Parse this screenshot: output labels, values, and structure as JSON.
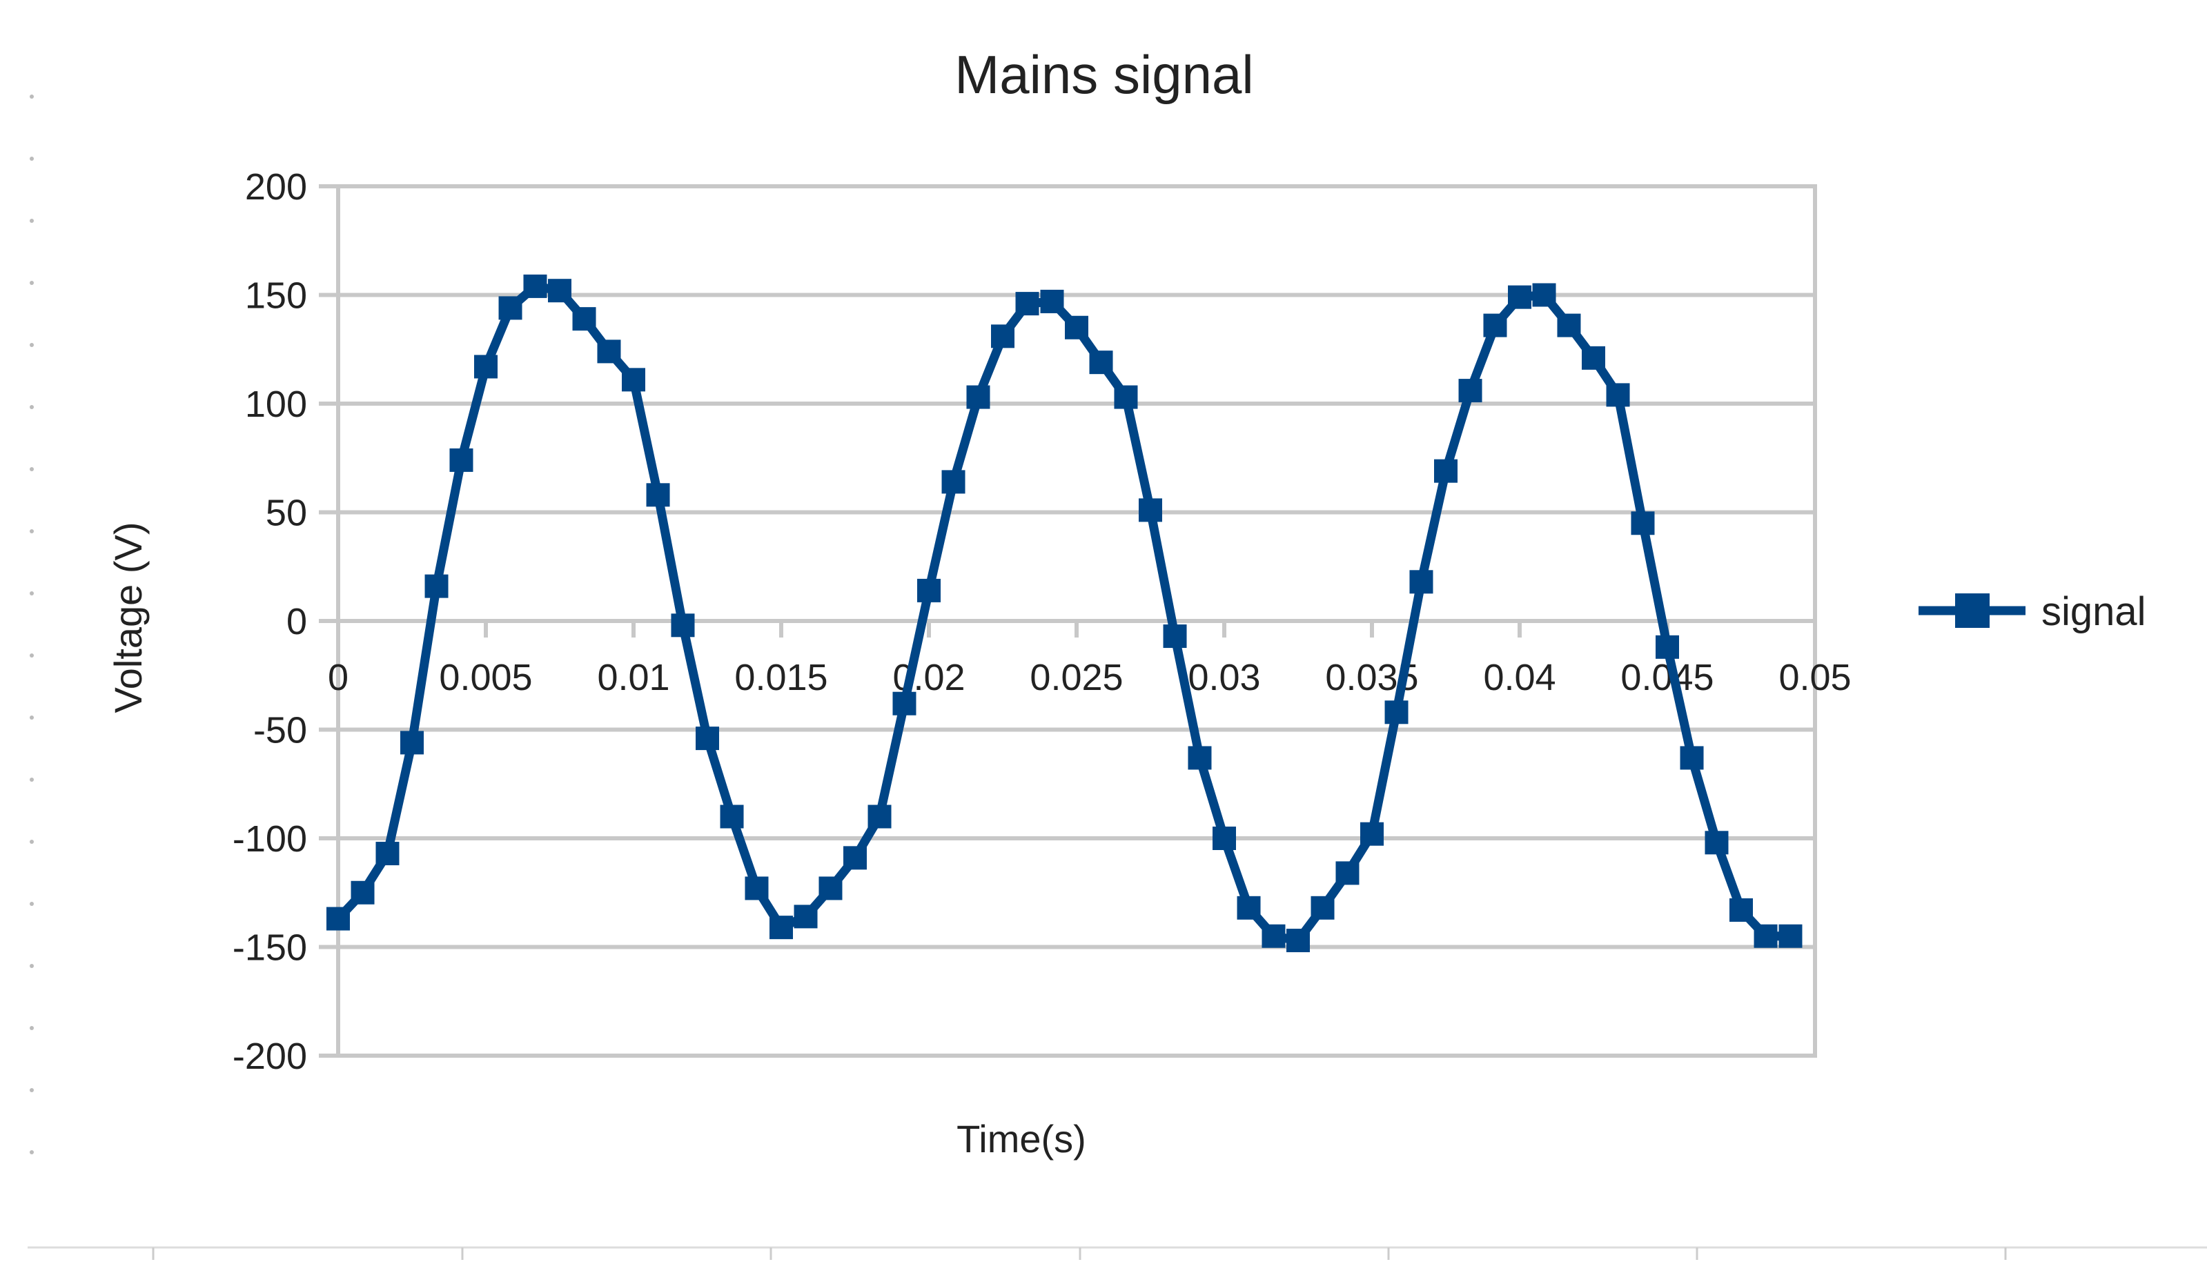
{
  "chart_data": {
    "type": "line",
    "title": "Mains signal",
    "xlabel": "Time(s)",
    "ylabel": "Voltage (V)",
    "xlim": [
      0,
      0.05
    ],
    "ylim": [
      -200,
      200
    ],
    "x_ticks": [
      "0",
      "0.005",
      "0.01",
      "0.015",
      "0.02",
      "0.025",
      "0.03",
      "0.035",
      "0.04",
      "0.045",
      "0.05"
    ],
    "y_ticks": [
      "200",
      "150",
      "100",
      "50",
      "0",
      "-50",
      "-100",
      "-150",
      "-200"
    ],
    "grid": true,
    "legend_position": "right",
    "series": [
      {
        "name": "signal",
        "color": "#004586",
        "marker": "square",
        "points": [
          [
            0.0,
            -137
          ],
          [
            0.00083,
            -125
          ],
          [
            0.00167,
            -107
          ],
          [
            0.0025,
            -56
          ],
          [
            0.00333,
            16
          ],
          [
            0.00417,
            74
          ],
          [
            0.005,
            117
          ],
          [
            0.00583,
            144
          ],
          [
            0.00667,
            154
          ],
          [
            0.0075,
            152
          ],
          [
            0.00833,
            139
          ],
          [
            0.00917,
            124
          ],
          [
            0.01,
            111
          ],
          [
            0.01083,
            58
          ],
          [
            0.01167,
            -2
          ],
          [
            0.0125,
            -54
          ],
          [
            0.01333,
            -90
          ],
          [
            0.01417,
            -123
          ],
          [
            0.015,
            -141
          ],
          [
            0.01583,
            -136
          ],
          [
            0.01667,
            -123
          ],
          [
            0.0175,
            -109
          ],
          [
            0.01833,
            -90
          ],
          [
            0.01917,
            -38
          ],
          [
            0.02,
            14
          ],
          [
            0.02083,
            64
          ],
          [
            0.02167,
            103
          ],
          [
            0.0225,
            131
          ],
          [
            0.02333,
            146
          ],
          [
            0.02417,
            147
          ],
          [
            0.025,
            135
          ],
          [
            0.02583,
            119
          ],
          [
            0.02667,
            103
          ],
          [
            0.0275,
            51
          ],
          [
            0.02833,
            -7
          ],
          [
            0.02917,
            -63
          ],
          [
            0.03,
            -100
          ],
          [
            0.03083,
            -132
          ],
          [
            0.03167,
            -145
          ],
          [
            0.0325,
            -147
          ],
          [
            0.03333,
            -132
          ],
          [
            0.03417,
            -116
          ],
          [
            0.035,
            -98
          ],
          [
            0.03583,
            -42
          ],
          [
            0.03667,
            18
          ],
          [
            0.0375,
            69
          ],
          [
            0.03833,
            106
          ],
          [
            0.03917,
            136
          ],
          [
            0.04,
            149
          ],
          [
            0.04083,
            150
          ],
          [
            0.04167,
            136
          ],
          [
            0.0425,
            121
          ],
          [
            0.04333,
            104
          ],
          [
            0.04417,
            45
          ],
          [
            0.045,
            -12
          ],
          [
            0.04583,
            -63
          ],
          [
            0.04667,
            -102
          ],
          [
            0.0475,
            -133
          ],
          [
            0.04833,
            -145
          ],
          [
            0.04917,
            -145
          ]
        ]
      }
    ]
  }
}
